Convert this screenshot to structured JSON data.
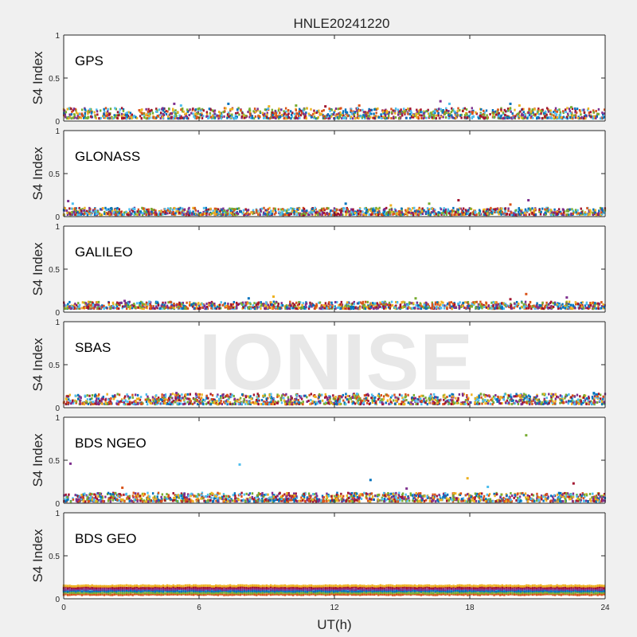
{
  "title": "HNLE20241220",
  "watermark": "IONISE",
  "colors": {
    "series": [
      "#0072BD",
      "#D95319",
      "#EDB120",
      "#7E2F8E",
      "#77AC30",
      "#4DBEEE",
      "#A2142F"
    ]
  },
  "chart_data": [
    {
      "type": "scatter",
      "panel": "GPS",
      "ylabel": "S4 Index",
      "xlim": [
        0,
        24
      ],
      "ylim": [
        0,
        1
      ],
      "yticks": [
        "0",
        "0.5",
        "1"
      ],
      "xticks": [],
      "baseline_range": [
        0.03,
        0.15
      ],
      "highlights": [
        [
          4.9,
          0.2
        ],
        [
          5.2,
          0.18
        ],
        [
          7.3,
          0.2
        ],
        [
          9.1,
          0.17
        ],
        [
          10.3,
          0.18
        ],
        [
          11.6,
          0.17
        ],
        [
          13.1,
          0.18
        ],
        [
          16.7,
          0.23
        ],
        [
          17.1,
          0.2
        ],
        [
          19.8,
          0.2
        ],
        [
          20.2,
          0.18
        ],
        [
          22.5,
          0.16
        ]
      ]
    },
    {
      "type": "scatter",
      "panel": "GLONASS",
      "ylabel": "S4 Index",
      "xlim": [
        0,
        24
      ],
      "ylim": [
        0,
        1
      ],
      "yticks": [
        "0",
        "0.5",
        "1"
      ],
      "xticks": [],
      "baseline_range": [
        0.02,
        0.1
      ],
      "highlights": [
        [
          0.2,
          0.18
        ],
        [
          0.4,
          0.15
        ],
        [
          12.5,
          0.15
        ],
        [
          14.5,
          0.13
        ],
        [
          16.2,
          0.15
        ],
        [
          17.5,
          0.19
        ],
        [
          19.8,
          0.14
        ],
        [
          20.6,
          0.19
        ]
      ]
    },
    {
      "type": "scatter",
      "panel": "GALILEO",
      "ylabel": "S4 Index",
      "xlim": [
        0,
        24
      ],
      "ylim": [
        0,
        1
      ],
      "yticks": [
        "0",
        "0.5",
        "1"
      ],
      "xticks": [],
      "baseline_range": [
        0.04,
        0.12
      ],
      "highlights": [
        [
          2.7,
          0.13
        ],
        [
          3.8,
          0.12
        ],
        [
          8.2,
          0.16
        ],
        [
          9.3,
          0.18
        ],
        [
          15.6,
          0.16
        ],
        [
          19.8,
          0.15
        ],
        [
          20.5,
          0.21
        ],
        [
          22.3,
          0.17
        ]
      ]
    },
    {
      "type": "scatter",
      "panel": "SBAS",
      "ylabel": "S4 Index",
      "xlim": [
        0,
        24
      ],
      "ylim": [
        0,
        1
      ],
      "yticks": [
        "0",
        "0.5",
        "1"
      ],
      "xticks": [],
      "baseline_range": [
        0.04,
        0.16
      ],
      "highlights": [
        [
          5.0,
          0.17
        ],
        [
          13.0,
          0.16
        ],
        [
          23.5,
          0.17
        ]
      ]
    },
    {
      "type": "scatter",
      "panel": "BDS NGEO",
      "ylabel": "S4 Index",
      "xlim": [
        0,
        24
      ],
      "ylim": [
        0,
        1
      ],
      "yticks": [
        "0",
        "0.5",
        "1"
      ],
      "xticks": [],
      "baseline_range": [
        0.02,
        0.12
      ],
      "highlights": [
        [
          0.3,
          0.46
        ],
        [
          7.8,
          0.45
        ],
        [
          13.6,
          0.27
        ],
        [
          17.9,
          0.29
        ],
        [
          20.5,
          0.79
        ],
        [
          22.6,
          0.23
        ],
        [
          2.6,
          0.18
        ],
        [
          15.2,
          0.17
        ],
        [
          18.8,
          0.19
        ]
      ]
    },
    {
      "type": "scatter",
      "panel": "BDS GEO",
      "ylabel": "S4 Index",
      "xlim": [
        0,
        24
      ],
      "ylim": [
        0,
        1
      ],
      "yticks": [
        "0",
        "0.5",
        "1"
      ],
      "xticks": [
        "0",
        "6",
        "12",
        "18",
        "24"
      ],
      "xlabel": "UT(h)",
      "bands": [
        0.05,
        0.07,
        0.09,
        0.11,
        0.13,
        0.15
      ]
    }
  ]
}
